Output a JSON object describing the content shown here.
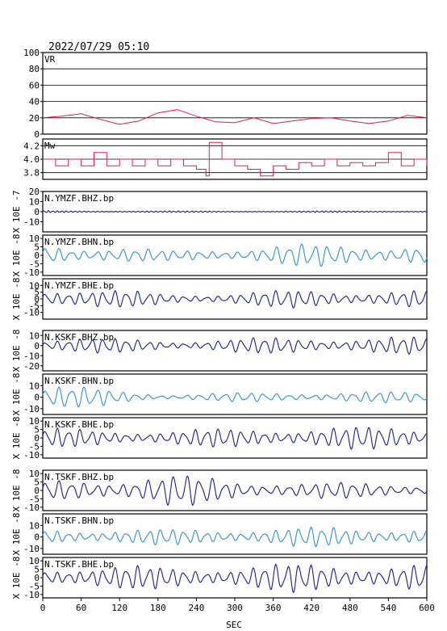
{
  "header": {
    "datetime": "2022/07/29 05:10"
  },
  "colors": {
    "vr": "#e0204a",
    "mw": "#e0204a",
    "dark_trace": "#1a1a90",
    "light_trace": "#2e8fd4",
    "grid": "#000000"
  },
  "chart_data": {
    "type": "line",
    "x_axis": {
      "label": "SEC",
      "range": [
        0,
        600
      ],
      "ticks": [
        "0",
        "60",
        "120",
        "180",
        "240",
        "300",
        "360",
        "420",
        "480",
        "540",
        "600"
      ]
    },
    "panels": [
      {
        "id": "vr",
        "label": "VR",
        "ylim": [
          0,
          100
        ],
        "yticks": [
          "100",
          "80",
          "60",
          "40",
          "20",
          "0"
        ],
        "grid": true,
        "x": [
          0,
          30,
          60,
          90,
          120,
          150,
          180,
          210,
          240,
          270,
          300,
          330,
          360,
          390,
          420,
          450,
          480,
          510,
          540,
          570,
          600
        ],
        "values": [
          20,
          22,
          25,
          18,
          12,
          16,
          26,
          30,
          22,
          15,
          14,
          20,
          13,
          16,
          19,
          20,
          16,
          13,
          16,
          23,
          20
        ]
      },
      {
        "id": "mw",
        "label": "Mw",
        "ylim": [
          3.7,
          4.3
        ],
        "yticks": [
          "4.2",
          "4.0",
          "3.8"
        ],
        "grid": true,
        "x": [
          0,
          20,
          40,
          60,
          80,
          100,
          120,
          140,
          160,
          180,
          200,
          220,
          240,
          255,
          260,
          280,
          300,
          320,
          340,
          360,
          380,
          400,
          420,
          440,
          460,
          480,
          500,
          520,
          540,
          560,
          580,
          600
        ],
        "values": [
          4.0,
          3.9,
          4.0,
          3.9,
          4.1,
          3.9,
          4.0,
          3.9,
          4.0,
          3.9,
          4.0,
          3.9,
          3.85,
          3.75,
          4.25,
          4.0,
          3.9,
          3.85,
          3.75,
          3.9,
          3.85,
          3.95,
          3.9,
          4.0,
          3.9,
          3.95,
          3.9,
          3.95,
          4.1,
          3.9,
          4.0,
          3.9
        ]
      },
      {
        "id": "ymzf-bhz",
        "label": "N.YMZF.BHZ.bp",
        "scale_label": "X 10E -7",
        "ylim": [
          -20,
          20
        ],
        "yticks": [
          "20",
          "10",
          "0",
          "-10"
        ],
        "style": "dark",
        "amp": [
          1.2,
          0.8,
          0.8
        ],
        "period": 7
      },
      {
        "id": "ymzf-bhn",
        "label": "N.YMZF.BHN.bp",
        "scale_label": "X 10E -8",
        "ylim": [
          -12,
          12
        ],
        "yticks": [
          "10",
          "5",
          "0",
          "-5",
          "-10"
        ],
        "style": "light",
        "amp": [
          8,
          3,
          7
        ],
        "period": 20
      },
      {
        "id": "ymzf-bhe",
        "label": "N.YMZF.BHE.bp",
        "scale_label": "X 10E -8",
        "ylim": [
          -15,
          15
        ],
        "yticks": [
          "10",
          "5",
          "0",
          "-5",
          "-10"
        ],
        "style": "dark",
        "amp": [
          11,
          4,
          7
        ],
        "period": 18
      },
      {
        "id": "kskf-bhz",
        "label": "N.KSKF.BHZ.bp",
        "scale_label": "X 10E -8",
        "ylim": [
          -25,
          15
        ],
        "yticks": [
          "10",
          "0",
          "-10",
          "-20"
        ],
        "style": "dark",
        "amp": [
          9,
          6,
          9
        ],
        "period": 18
      },
      {
        "id": "kskf-bhn",
        "label": "N.KSKF.BHN.bp",
        "scale_label": "X 10E -8",
        "ylim": [
          -15,
          20
        ],
        "yticks": [
          "10",
          "0",
          "-10"
        ],
        "style": "light",
        "amp": [
          12,
          3,
          5
        ],
        "period": 20
      },
      {
        "id": "kskf-bhe",
        "label": "N.KSKF.BHE.bp",
        "scale_label": "X 10E -8",
        "ylim": [
          -12,
          12
        ],
        "yticks": [
          "10",
          "5",
          "0",
          "-5",
          "-10"
        ],
        "style": "dark",
        "amp": [
          6,
          5,
          7
        ],
        "period": 18
      },
      {
        "id": "tskf-bhz",
        "label": "N.TSKF.BHZ.bp",
        "scale_label": "X 10E -8",
        "ylim": [
          -12,
          12
        ],
        "yticks": [
          "10",
          "5",
          "0",
          "-5",
          "-10"
        ],
        "style": "dark",
        "amp": [
          6,
          10,
          5
        ],
        "period": 20
      },
      {
        "id": "tskf-bhn",
        "label": "N.TSKF.BHN.bp",
        "scale_label": "X 10E -8",
        "ylim": [
          -15,
          20
        ],
        "yticks": [
          "10",
          "0",
          "-10"
        ],
        "style": "light",
        "amp": [
          8,
          7,
          9
        ],
        "period": 18
      },
      {
        "id": "tskf-bhe",
        "label": "N.TSKF.BHE.bp",
        "scale_label": "X 10E -8",
        "ylim": [
          -12,
          12
        ],
        "yticks": [
          "10",
          "5",
          "0",
          "-5",
          "-10"
        ],
        "style": "dark",
        "amp": [
          8,
          7,
          9
        ],
        "period": 18
      }
    ]
  }
}
